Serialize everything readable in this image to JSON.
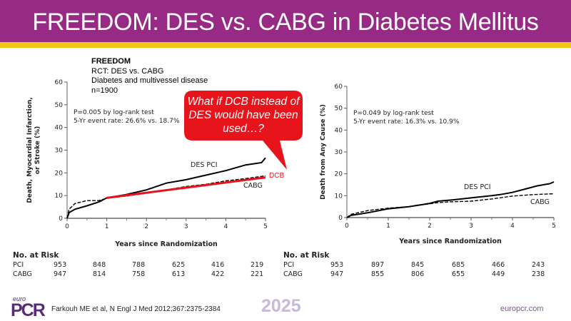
{
  "header": {
    "title": "FREEDOM: DES vs. CABG in Diabetes Mellitus"
  },
  "trial_info": {
    "name": "FREEDOM",
    "lines": [
      "RCT: DES vs. CABG",
      "Diabetes and multivessel disease",
      "n=1900"
    ]
  },
  "callout": {
    "text": "What if DCB instead of DES would have been used…?",
    "dcb_label": "DCB"
  },
  "colors": {
    "brand_purple": "#962a85",
    "accent_yellow": "#f2c318",
    "callout_red": "#e8141c",
    "dcb_red": "#e8141c"
  },
  "chart_data": [
    {
      "type": "line",
      "title": "",
      "xlabel": "Years since Randomization",
      "ylabel": "Death, Myocardial Infarction, or Stroke (%)",
      "xlim": [
        0,
        5
      ],
      "ylim": [
        0,
        60
      ],
      "x_ticks": [
        0,
        1,
        2,
        3,
        4,
        5
      ],
      "y_ticks": [
        0,
        10,
        20,
        30,
        40,
        50,
        60
      ],
      "annotations": [
        "P=0.005 by log-rank test",
        "5-Yr event rate: 26.6% vs. 18.7%"
      ],
      "series": [
        {
          "name": "DES PCI",
          "style": "solid",
          "color": "#000000",
          "x": [
            0,
            0.05,
            0.2,
            0.5,
            0.8,
            1.0,
            1.5,
            2.0,
            2.5,
            3.0,
            3.5,
            4.0,
            4.5,
            4.9,
            5.0
          ],
          "y": [
            0,
            2.5,
            4.0,
            5.5,
            7.2,
            9.0,
            10.5,
            12.5,
            15.5,
            17.0,
            19.0,
            21.0,
            23.5,
            24.5,
            26.6
          ]
        },
        {
          "name": "CABG",
          "style": "dashed",
          "color": "#000000",
          "x": [
            0,
            0.05,
            0.2,
            0.5,
            0.8,
            1.0,
            1.5,
            2.0,
            2.5,
            3.0,
            3.5,
            4.0,
            4.5,
            5.0
          ],
          "y": [
            0,
            4.0,
            6.5,
            7.8,
            7.8,
            8.8,
            9.8,
            11.0,
            12.5,
            14.0,
            15.0,
            16.5,
            17.5,
            18.7
          ]
        },
        {
          "name": "DCB",
          "style": "solid-red",
          "color": "#e8141c",
          "x": [
            1.0,
            5.0
          ],
          "y": [
            9.0,
            18.0
          ]
        }
      ],
      "risk_table": {
        "title": "No. at Risk",
        "rows": [
          {
            "label": "PCI",
            "values": [
              953,
              848,
              788,
              625,
              416,
              219
            ]
          },
          {
            "label": "CABG",
            "values": [
              947,
              814,
              758,
              613,
              422,
              221
            ]
          }
        ]
      }
    },
    {
      "type": "line",
      "title": "",
      "xlabel": "Years since Randomization",
      "ylabel": "Death from Any Cause (%)",
      "xlim": [
        0,
        5
      ],
      "ylim": [
        0,
        60
      ],
      "x_ticks": [
        0,
        1,
        2,
        3,
        4,
        5
      ],
      "y_ticks": [
        0,
        10,
        20,
        30,
        40,
        50,
        60
      ],
      "annotations": [
        "P=0.049 by log-rank test",
        "5-Yr event rate: 16.3% vs. 10.9%"
      ],
      "series": [
        {
          "name": "DES PCI",
          "style": "solid",
          "color": "#000000",
          "x": [
            0,
            0.1,
            0.5,
            1.0,
            1.5,
            2.0,
            2.2,
            2.5,
            3.0,
            3.5,
            3.7,
            4.0,
            4.3,
            4.6,
            4.9,
            5.0
          ],
          "y": [
            0,
            1.0,
            2.2,
            4.0,
            5.0,
            6.5,
            7.5,
            8.0,
            9.0,
            10.0,
            10.5,
            11.5,
            13.0,
            14.5,
            15.5,
            16.3
          ]
        },
        {
          "name": "CABG",
          "style": "dashed",
          "color": "#000000",
          "x": [
            0,
            0.1,
            0.5,
            1.0,
            1.5,
            2.0,
            2.2,
            2.5,
            3.0,
            3.5,
            4.0,
            4.5,
            5.0
          ],
          "y": [
            0,
            1.5,
            3.2,
            4.3,
            5.0,
            6.3,
            6.8,
            7.2,
            7.5,
            8.5,
            9.8,
            10.5,
            10.9
          ]
        }
      ],
      "risk_table": {
        "title": "No. at Risk",
        "rows": [
          {
            "label": "PCI",
            "values": [
              953,
              897,
              845,
              685,
              466,
              243
            ]
          },
          {
            "label": "CABG",
            "values": [
              947,
              855,
              806,
              655,
              449,
              238
            ]
          }
        ]
      }
    }
  ],
  "footer": {
    "logo_euro": "euro",
    "logo_pcr": "PCR",
    "reference": "Farkouh ME et al, N Engl J Med 2012;367:2375-2384",
    "year": "2025",
    "website": "europcr.com"
  }
}
